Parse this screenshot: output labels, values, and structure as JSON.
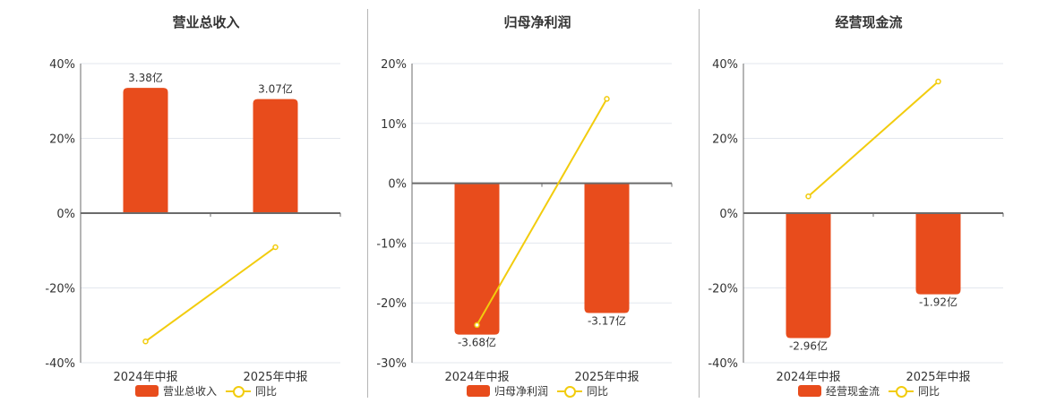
{
  "colors": {
    "bar": "#E84C1C",
    "line": "#F2CC0E",
    "grid": "#e3e7ee",
    "axis": "#6b6b6b"
  },
  "chart_data": [
    {
      "type": "bar+line",
      "title": "营业总收入",
      "categories": [
        "2024年中报",
        "2025年中报"
      ],
      "series": [
        {
          "name": "营业总收入",
          "type": "bar",
          "values": [
            3.38,
            3.07
          ],
          "labels": [
            "3.38亿",
            "3.07亿"
          ],
          "bar_pct": [
            33.5,
            30.5
          ]
        },
        {
          "name": "同比",
          "type": "line",
          "values": [
            -34.3,
            -9.1
          ]
        }
      ],
      "ylim": [
        -40,
        40
      ],
      "yticks": [
        40,
        20,
        0,
        -20,
        -40
      ],
      "ytick_labels": [
        "40%",
        "20%",
        "0%",
        "-20%",
        "-40%"
      ],
      "legend": [
        "营业总收入",
        "同比"
      ]
    },
    {
      "type": "bar+line",
      "title": "归母净利润",
      "categories": [
        "2024年中报",
        "2025年中报"
      ],
      "series": [
        {
          "name": "归母净利润",
          "type": "bar",
          "values": [
            -3.68,
            -3.17
          ],
          "labels": [
            "-3.68亿",
            "-3.17亿"
          ],
          "bar_pct": [
            -25.3,
            -21.7
          ]
        },
        {
          "name": "同比",
          "type": "line",
          "values": [
            -23.7,
            14.1
          ]
        }
      ],
      "ylim": [
        -30,
        20
      ],
      "yticks": [
        20,
        10,
        0,
        -10,
        -20,
        -30
      ],
      "ytick_labels": [
        "20%",
        "10%",
        "0%",
        "-10%",
        "-20%",
        "-30%"
      ],
      "legend": [
        "归母净利润",
        "同比"
      ]
    },
    {
      "type": "bar+line",
      "title": "经营现金流",
      "categories": [
        "2024年中报",
        "2025年中报"
      ],
      "series": [
        {
          "name": "经营现金流",
          "type": "bar",
          "values": [
            -2.96,
            -1.92
          ],
          "labels": [
            "-2.96亿",
            "-1.92亿"
          ],
          "bar_pct": [
            -33.4,
            -21.7
          ]
        },
        {
          "name": "同比",
          "type": "line",
          "values": [
            4.5,
            35.2
          ]
        }
      ],
      "ylim": [
        -40,
        40
      ],
      "yticks": [
        40,
        20,
        0,
        -20,
        -40
      ],
      "ytick_labels": [
        "40%",
        "20%",
        "0%",
        "-20%",
        "-40%"
      ],
      "legend": [
        "经营现金流",
        "同比"
      ]
    }
  ]
}
